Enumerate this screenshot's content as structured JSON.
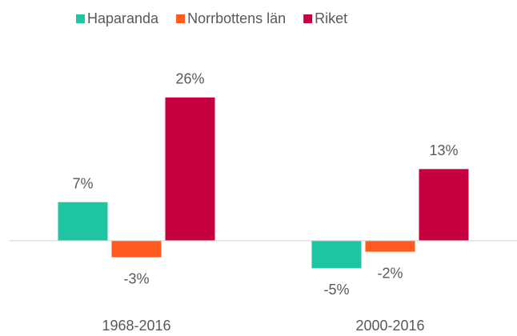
{
  "chart_data": {
    "type": "bar",
    "categories": [
      "1968-2016",
      "2000-2016"
    ],
    "series": [
      {
        "name": "Haparanda",
        "color": "#1fc4a2",
        "values": [
          7,
          -5
        ],
        "value_labels": [
          "7%",
          "-5%"
        ]
      },
      {
        "name": "Norrbottens län",
        "color": "#ff5b1e",
        "values": [
          -3,
          -2
        ],
        "value_labels": [
          "-3%",
          "-2%"
        ]
      },
      {
        "name": "Riket",
        "color": "#c70040",
        "values": [
          26,
          13
        ],
        "value_labels": [
          "26%",
          "13%"
        ]
      }
    ],
    "ylim": [
      -8,
      28
    ],
    "legend": "top"
  }
}
